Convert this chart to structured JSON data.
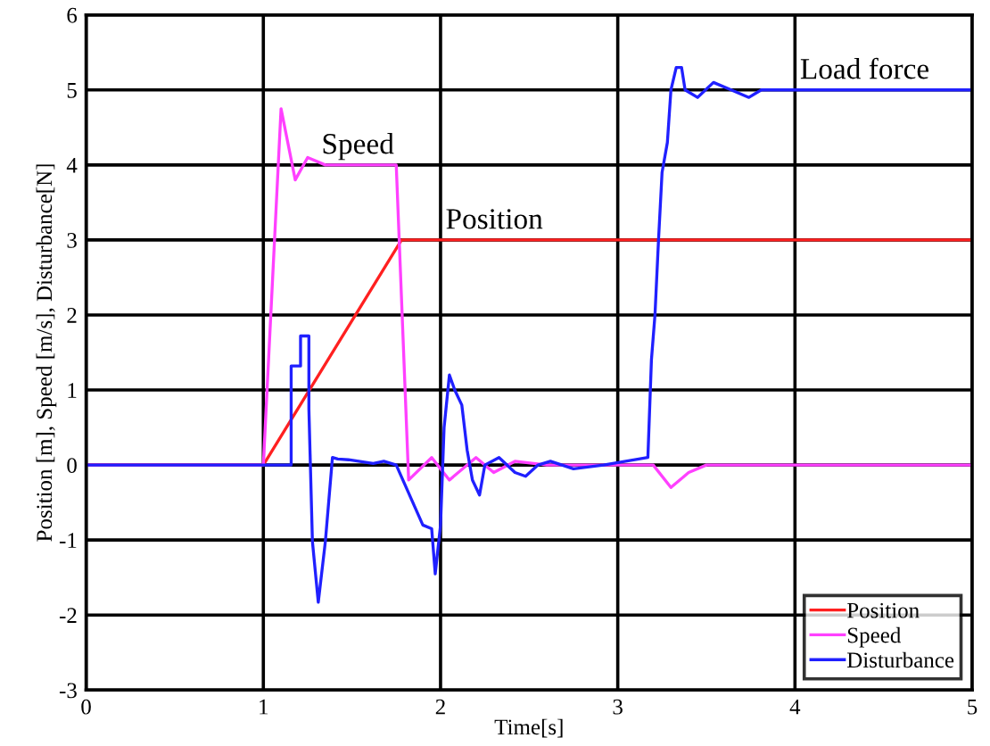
{
  "chart_data": {
    "type": "line",
    "xlabel": "Time[s]",
    "ylabel": "Position [m], Speed [m/s], Disturbance[N]",
    "xlim": [
      0,
      5
    ],
    "ylim": [
      -3,
      6
    ],
    "xticks": [
      0,
      1,
      2,
      3,
      4,
      5
    ],
    "yticks": [
      -3,
      -2,
      -1,
      0,
      1,
      2,
      3,
      4,
      5,
      6
    ],
    "grid": true,
    "legend": "bottom right",
    "annotations": [
      {
        "text": "Speed",
        "x": 1.3,
        "y": 4.0
      },
      {
        "text": "Position",
        "x": 2.0,
        "y": 3.0
      },
      {
        "text": "Load force",
        "x": 4.0,
        "y": 5.0
      }
    ],
    "series": [
      {
        "name": "Position",
        "color": "#ff2020",
        "x": [
          0,
          1.0,
          1.78,
          5
        ],
        "values": [
          0,
          0,
          3,
          3
        ]
      },
      {
        "name": "Speed",
        "color": "#ff40ff",
        "x": [
          0,
          1.0,
          1.1,
          1.18,
          1.25,
          1.35,
          1.75,
          1.82,
          1.95,
          2.05,
          2.2,
          2.3,
          2.42,
          2.6,
          3.2,
          3.3,
          3.4,
          3.5,
          5
        ],
        "values": [
          0,
          0,
          4.75,
          3.8,
          4.1,
          4.0,
          4.0,
          -0.2,
          0.1,
          -0.2,
          0.1,
          -0.1,
          0.05,
          0,
          0,
          -0.3,
          -0.1,
          0,
          0
        ]
      },
      {
        "name": "Disturbance",
        "color": "#2020ff",
        "x": [
          0,
          1.157,
          1.157,
          1.21,
          1.21,
          1.257,
          1.257,
          1.277,
          1.31,
          1.35,
          1.39,
          1.42,
          1.48,
          1.62,
          1.68,
          1.75,
          1.9,
          1.95,
          1.97,
          2.0,
          2.02,
          2.05,
          2.08,
          2.12,
          2.15,
          2.18,
          2.22,
          2.25,
          2.33,
          2.42,
          2.48,
          2.55,
          2.62,
          2.75,
          2.92,
          3.17,
          3.19,
          3.21,
          3.23,
          3.25,
          3.28,
          3.3,
          3.33,
          3.36,
          3.38,
          3.45,
          3.54,
          3.64,
          3.74,
          3.81,
          5
        ],
        "values": [
          0,
          0,
          1.32,
          1.32,
          1.72,
          1.72,
          0.75,
          -1.02,
          -1.83,
          -1.02,
          0.1,
          0.08,
          0.07,
          0.02,
          0.05,
          0,
          -0.8,
          -0.85,
          -1.45,
          -0.8,
          0.5,
          1.2,
          1.0,
          0.8,
          0.2,
          -0.2,
          -0.4,
          0,
          0.1,
          -0.1,
          -0.15,
          0,
          0.05,
          -0.05,
          0,
          0.1,
          1.4,
          2.0,
          3.0,
          3.9,
          4.3,
          5.0,
          5.3,
          5.3,
          5.0,
          4.9,
          5.1,
          5.0,
          4.9,
          5.0,
          5.0
        ]
      }
    ]
  }
}
